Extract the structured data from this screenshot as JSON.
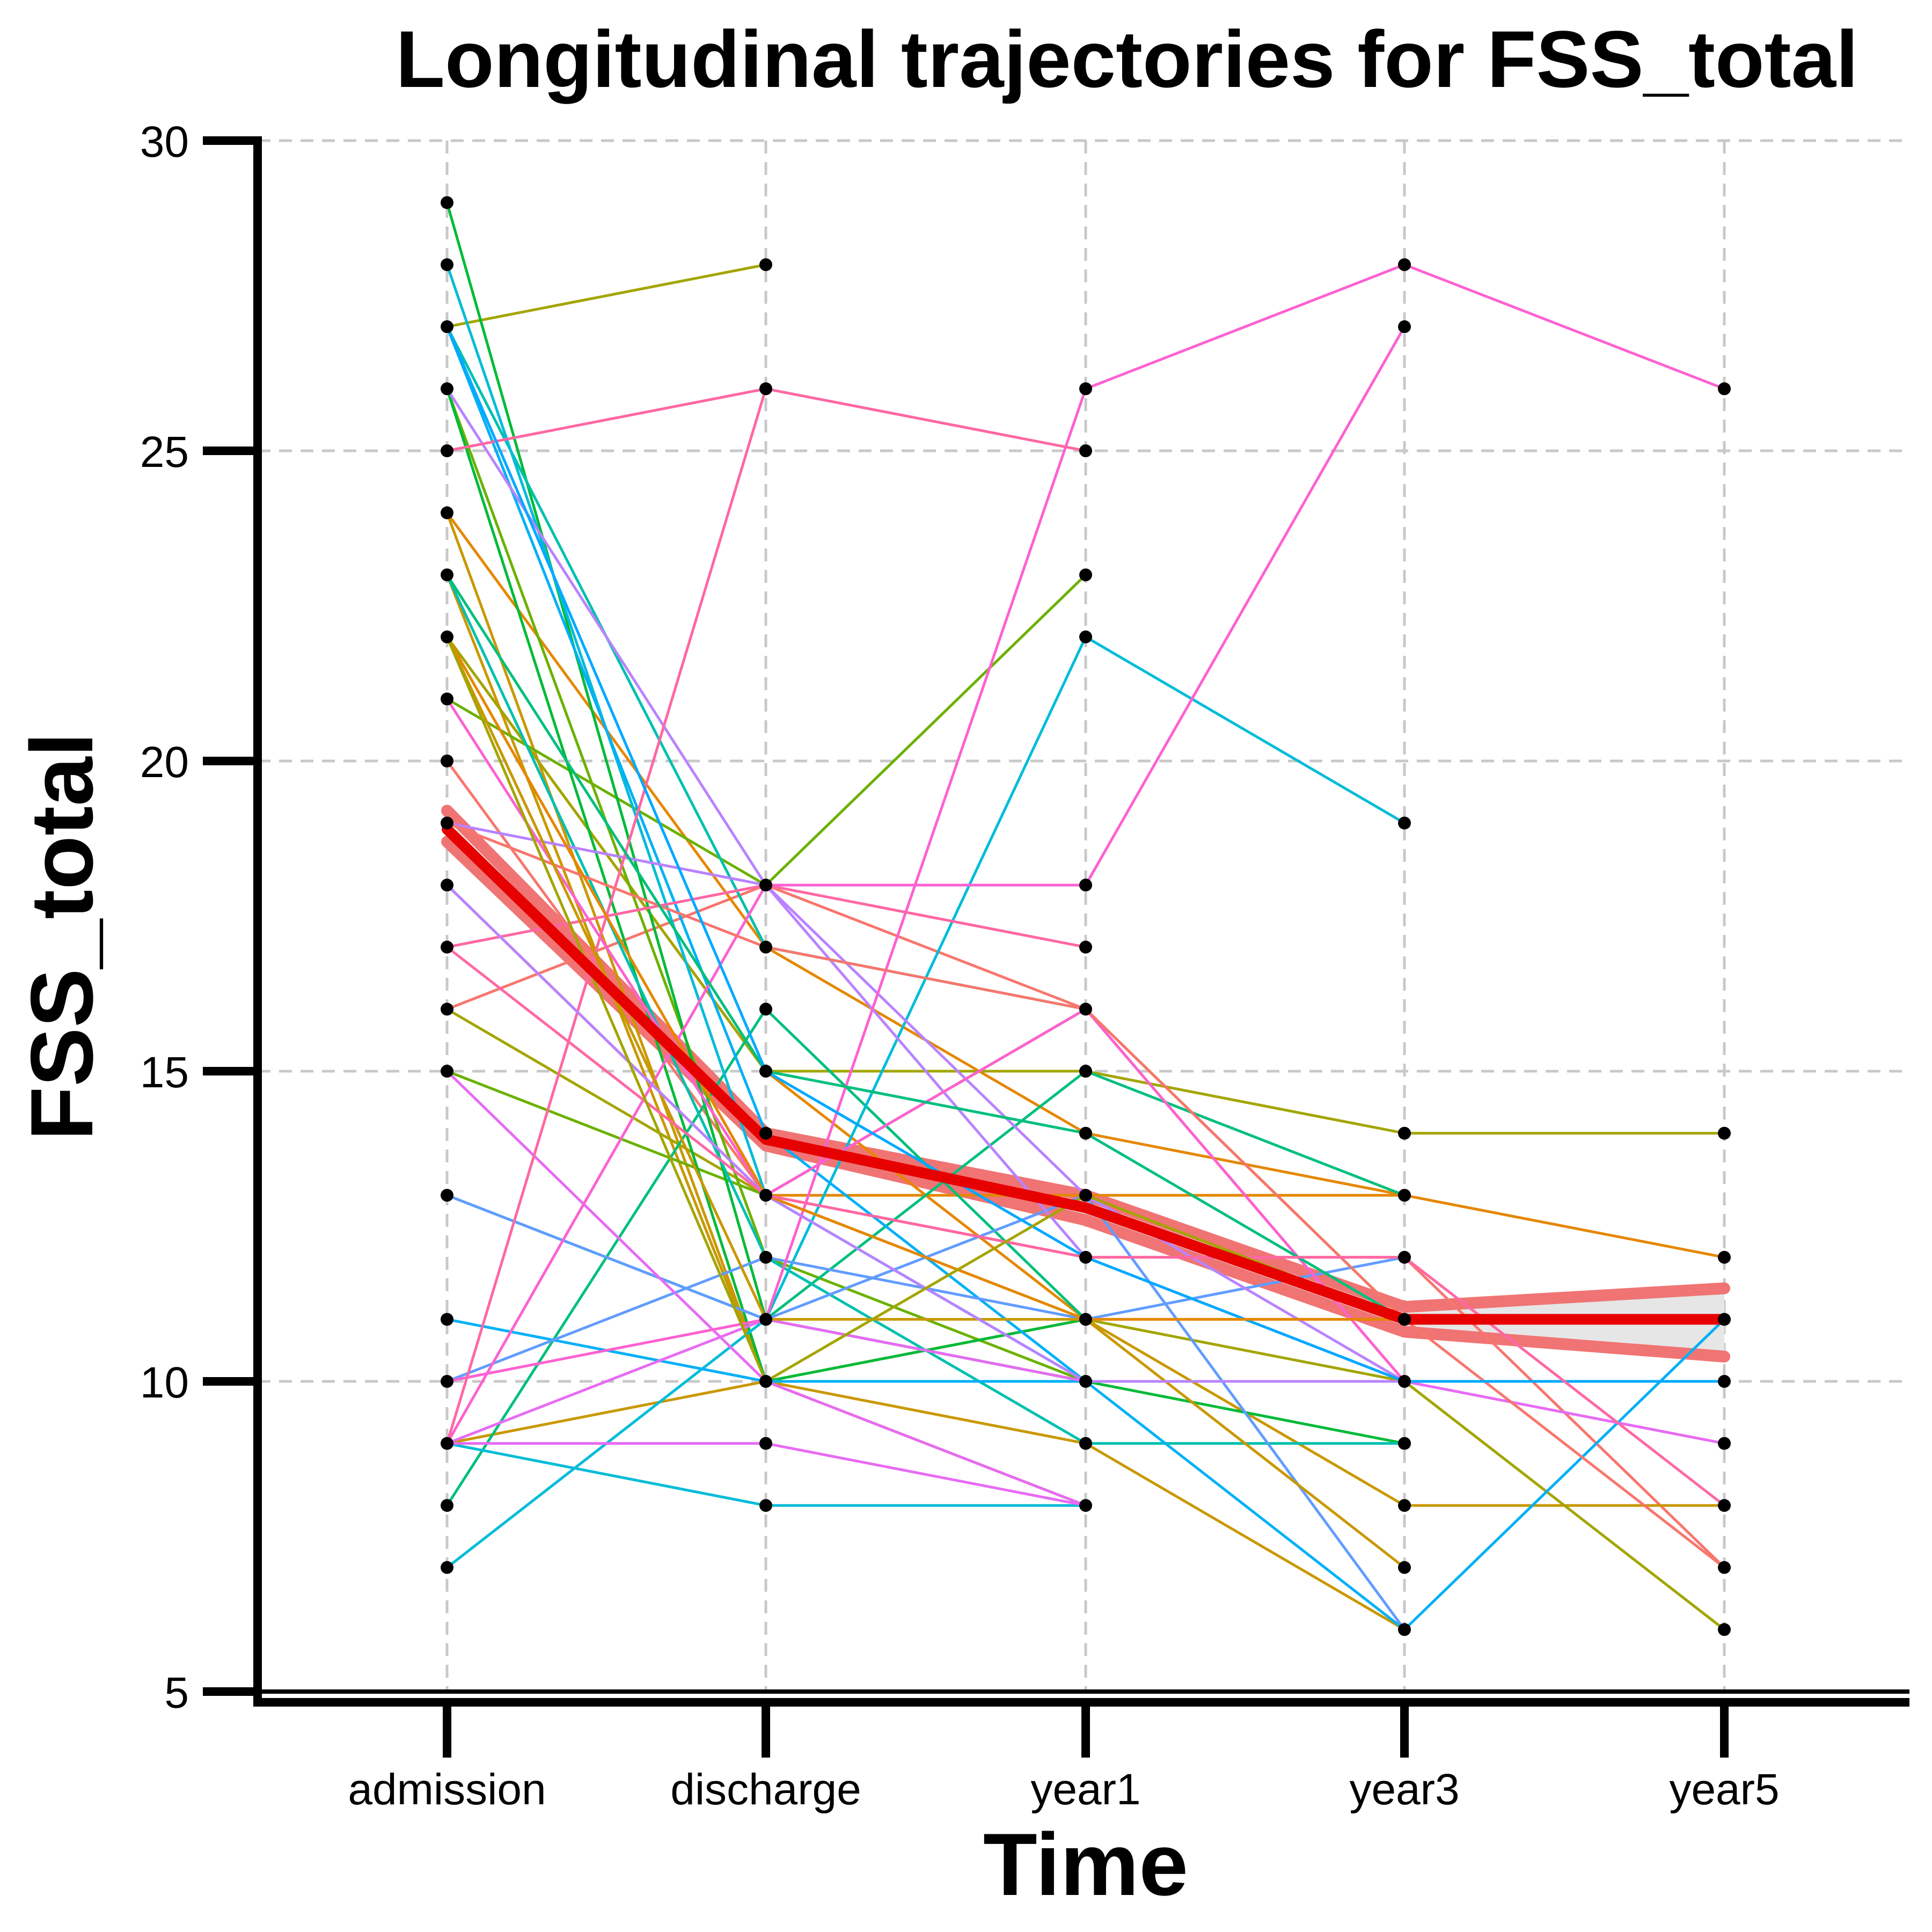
{
  "chart_data": {
    "type": "line",
    "title": "Longitudinal trajectories for FSS_total",
    "xlabel": "Time",
    "ylabel": "FSS_total",
    "categories": [
      "admission",
      "discharge",
      "year1",
      "year3",
      "year5"
    ],
    "ylim": [
      5,
      30
    ],
    "yticks": [
      5,
      10,
      15,
      20,
      25,
      30
    ],
    "grid": true,
    "colors": {
      "mean_line": "#e60000",
      "ci_band": "#f07474",
      "ci_fill": "#e6e6e6",
      "points": "#000000",
      "grid": "#c8c8c8",
      "axis": "#000000"
    },
    "series": [
      {
        "color": "#F8766D",
        "values": [
          20,
          13,
          12,
          12,
          7
        ]
      },
      {
        "color": "#F8766D",
        "values": [
          16,
          18,
          16,
          10,
          null
        ]
      },
      {
        "color": "#E58700",
        "values": [
          24,
          17,
          14,
          13,
          12
        ]
      },
      {
        "color": "#E58700",
        "values": [
          18,
          13,
          13,
          13,
          null
        ]
      },
      {
        "color": "#E58700",
        "values": [
          22,
          15,
          11,
          11,
          null
        ]
      },
      {
        "color": "#C99800",
        "values": [
          23,
          10,
          9,
          6,
          null
        ]
      },
      {
        "color": "#C99800",
        "values": [
          24,
          10,
          8,
          null,
          null
        ]
      },
      {
        "color": "#C99800",
        "values": [
          9,
          10,
          11,
          8,
          8
        ]
      },
      {
        "color": "#A3A500",
        "values": [
          27,
          28,
          null,
          null,
          null
        ]
      },
      {
        "color": "#A3A500",
        "values": [
          22,
          15,
          15,
          14,
          14
        ]
      },
      {
        "color": "#A3A500",
        "values": [
          16,
          13,
          11,
          10,
          6
        ]
      },
      {
        "color": "#6BB100",
        "values": [
          21,
          18,
          23,
          null,
          null
        ]
      },
      {
        "color": "#6BB100",
        "values": [
          15,
          13,
          16,
          11,
          null
        ]
      },
      {
        "color": "#6BB100",
        "values": [
          26,
          12,
          10,
          10,
          null
        ]
      },
      {
        "color": "#00BA38",
        "values": [
          29,
          11,
          10,
          9,
          null
        ]
      },
      {
        "color": "#00BA38",
        "values": [
          26,
          10,
          11,
          null,
          null
        ]
      },
      {
        "color": "#00BF7D",
        "values": [
          8,
          16,
          11,
          null,
          null
        ]
      },
      {
        "color": "#00BF7D",
        "values": [
          13,
          11,
          15,
          13,
          null
        ]
      },
      {
        "color": "#00C0AF",
        "values": [
          23,
          12,
          9,
          9,
          null
        ]
      },
      {
        "color": "#00C0AF",
        "values": [
          27,
          17,
          16,
          null,
          null
        ]
      },
      {
        "color": "#00BCD8",
        "values": [
          28,
          13,
          10,
          10,
          null
        ]
      },
      {
        "color": "#00BCD8",
        "values": [
          9,
          8,
          8,
          null,
          null
        ]
      },
      {
        "color": "#00BCD8",
        "values": [
          7,
          11,
          22,
          19,
          null
        ]
      },
      {
        "color": "#00B0F6",
        "values": [
          11,
          10,
          10,
          6,
          11
        ]
      },
      {
        "color": "#00B0F6",
        "values": [
          27,
          14,
          10,
          null,
          null
        ]
      },
      {
        "color": "#619CFF",
        "values": [
          13,
          11,
          13,
          6,
          null
        ]
      },
      {
        "color": "#619CFF",
        "values": [
          10,
          12,
          11,
          12,
          null
        ]
      },
      {
        "color": "#B983FF",
        "values": [
          26,
          18,
          13,
          10,
          10
        ]
      },
      {
        "color": "#B983FF",
        "values": [
          19,
          18,
          12,
          10,
          null
        ]
      },
      {
        "color": "#E76BF3",
        "values": [
          15,
          10,
          8,
          null,
          null
        ]
      },
      {
        "color": "#E76BF3",
        "values": [
          9,
          9,
          8,
          null,
          null
        ]
      },
      {
        "color": "#E76BF3",
        "values": [
          9,
          11,
          10,
          10,
          9
        ]
      },
      {
        "color": "#FD61D1",
        "values": [
          9,
          18,
          18,
          27,
          null
        ]
      },
      {
        "color": "#FD61D1",
        "values": [
          10,
          11,
          26,
          28,
          26
        ]
      },
      {
        "color": "#FD61D1",
        "values": [
          21,
          13,
          16,
          10,
          null
        ]
      },
      {
        "color": "#FF67A4",
        "values": [
          9,
          26,
          25,
          null,
          null
        ]
      },
      {
        "color": "#FF67A4",
        "values": [
          25,
          26,
          null,
          null,
          null
        ]
      },
      {
        "color": "#FF67A4",
        "values": [
          17,
          18,
          17,
          null,
          null
        ]
      },
      {
        "color": "#F8766D",
        "values": [
          19,
          17,
          16,
          11,
          7
        ]
      },
      {
        "color": "#C99800",
        "values": [
          22,
          11,
          11,
          7,
          null
        ]
      },
      {
        "color": "#00BF7D",
        "values": [
          23,
          15,
          14,
          11,
          null
        ]
      },
      {
        "color": "#B983FF",
        "values": [
          18,
          13,
          10,
          10,
          null
        ]
      },
      {
        "color": "#00A9FF",
        "values": [
          27,
          15,
          12,
          10,
          10
        ]
      },
      {
        "color": "#E58700",
        "values": [
          22,
          13,
          11,
          11,
          11
        ]
      },
      {
        "color": "#FF67A4",
        "values": [
          17,
          13,
          12,
          12,
          8
        ]
      },
      {
        "color": "#A3A500",
        "values": [
          22,
          10,
          13,
          11,
          null
        ]
      }
    ],
    "mean_line": {
      "values": [
        18.9,
        13.9,
        12.8,
        11.0,
        11.0
      ]
    },
    "ci": {
      "lower": [
        18.7,
        13.8,
        12.6,
        10.8,
        10.4
      ],
      "upper": [
        19.2,
        14.0,
        13.0,
        11.2,
        11.5
      ]
    }
  }
}
